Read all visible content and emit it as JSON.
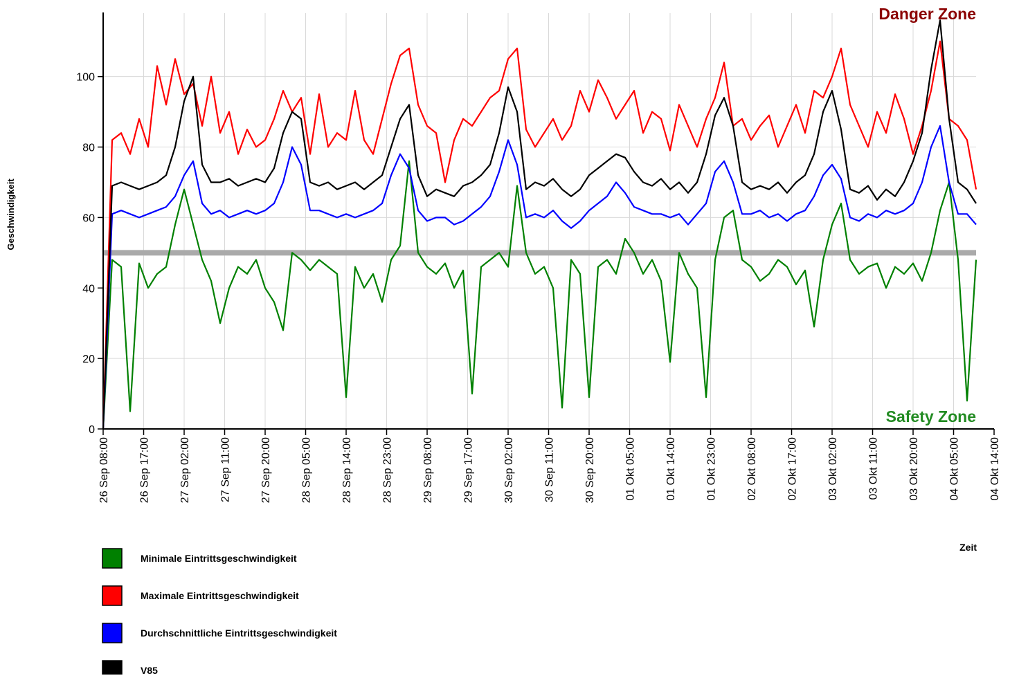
{
  "chart_data": {
    "type": "line",
    "y_label": "Geschwindigkeit",
    "x_label": "Zeit",
    "x": [
      "26 Sep 08:00",
      "26 Sep 10:00",
      "26 Sep 12:00",
      "26 Sep 14:00",
      "26 Sep 16:00",
      "26 Sep 18:00",
      "26 Sep 20:00",
      "26 Sep 22:00",
      "27 Sep 00:00",
      "27 Sep 02:00",
      "27 Sep 04:00",
      "27 Sep 06:00",
      "27 Sep 08:00",
      "27 Sep 10:00",
      "27 Sep 12:00",
      "27 Sep 14:00",
      "27 Sep 16:00",
      "27 Sep 18:00",
      "27 Sep 20:00",
      "27 Sep 22:00",
      "28 Sep 00:00",
      "28 Sep 02:00",
      "28 Sep 04:00",
      "28 Sep 06:00",
      "28 Sep 08:00",
      "28 Sep 10:00",
      "28 Sep 12:00",
      "28 Sep 14:00",
      "28 Sep 16:00",
      "28 Sep 18:00",
      "28 Sep 20:00",
      "28 Sep 22:00",
      "29 Sep 00:00",
      "29 Sep 02:00",
      "29 Sep 04:00",
      "29 Sep 06:00",
      "29 Sep 08:00",
      "29 Sep 10:00",
      "29 Sep 12:00",
      "29 Sep 14:00",
      "29 Sep 16:00",
      "29 Sep 18:00",
      "29 Sep 20:00",
      "29 Sep 22:00",
      "30 Sep 00:00",
      "30 Sep 02:00",
      "30 Sep 04:00",
      "30 Sep 06:00",
      "30 Sep 08:00",
      "30 Sep 10:00",
      "30 Sep 12:00",
      "30 Sep 14:00",
      "30 Sep 16:00",
      "30 Sep 18:00",
      "30 Sep 20:00",
      "30 Sep 22:00",
      "01 Okt 00:00",
      "01 Okt 02:00",
      "01 Okt 04:00",
      "01 Okt 06:00",
      "01 Okt 08:00",
      "01 Okt 10:00",
      "01 Okt 12:00",
      "01 Okt 14:00",
      "01 Okt 16:00",
      "01 Okt 18:00",
      "01 Okt 20:00",
      "01 Okt 22:00",
      "02 Okt 00:00",
      "02 Okt 02:00",
      "02 Okt 04:00",
      "02 Okt 06:00",
      "02 Okt 08:00",
      "02 Okt 10:00",
      "02 Okt 12:00",
      "02 Okt 14:00",
      "02 Okt 16:00",
      "02 Okt 18:00",
      "02 Okt 20:00",
      "02 Okt 22:00",
      "03 Okt 00:00",
      "03 Okt 02:00",
      "03 Okt 04:00",
      "03 Okt 06:00",
      "03 Okt 08:00",
      "03 Okt 10:00",
      "03 Okt 12:00",
      "03 Okt 14:00",
      "03 Okt 16:00",
      "03 Okt 18:00",
      "03 Okt 20:00",
      "03 Okt 22:00",
      "04 Okt 00:00",
      "04 Okt 02:00",
      "04 Okt 04:00",
      "04 Okt 06:00",
      "04 Okt 08:00",
      "04 Okt 10:00"
    ],
    "series": [
      {
        "name": "Minimale Eintrittsgeschwindigkeit",
        "color": "#008000",
        "values": [
          0,
          48,
          46,
          5,
          47,
          40,
          44,
          46,
          58,
          68,
          58,
          48,
          42,
          30,
          40,
          46,
          44,
          48,
          40,
          36,
          28,
          50,
          48,
          45,
          48,
          46,
          44,
          9,
          46,
          40,
          44,
          36,
          48,
          52,
          76,
          50,
          46,
          44,
          47,
          40,
          45,
          10,
          46,
          48,
          50,
          46,
          69,
          50,
          44,
          46,
          40,
          6,
          48,
          44,
          9,
          46,
          48,
          44,
          54,
          50,
          44,
          48,
          42,
          19,
          50,
          44,
          40,
          9,
          48,
          60,
          62,
          48,
          46,
          42,
          44,
          48,
          46,
          41,
          45,
          29,
          48,
          58,
          64,
          48,
          44,
          46,
          47,
          40,
          46,
          44,
          47,
          42,
          50,
          62,
          70,
          48,
          8,
          48
        ]
      },
      {
        "name": "Maximale Eintrittsgeschwindigkeit",
        "color": "#ff0000",
        "values": [
          0,
          82,
          84,
          78,
          88,
          80,
          103,
          92,
          105,
          95,
          98,
          86,
          100,
          84,
          90,
          78,
          85,
          80,
          82,
          88,
          96,
          90,
          94,
          78,
          95,
          80,
          84,
          82,
          96,
          82,
          78,
          88,
          98,
          106,
          108,
          92,
          86,
          84,
          70,
          82,
          88,
          86,
          90,
          94,
          96,
          105,
          108,
          85,
          80,
          84,
          88,
          82,
          86,
          96,
          90,
          99,
          94,
          88,
          92,
          96,
          84,
          90,
          88,
          79,
          92,
          86,
          80,
          88,
          94,
          104,
          86,
          88,
          82,
          86,
          89,
          80,
          86,
          92,
          84,
          96,
          94,
          100,
          108,
          92,
          86,
          80,
          90,
          84,
          95,
          88,
          78,
          86,
          96,
          110,
          88,
          86,
          82,
          68
        ]
      },
      {
        "name": "Durchschnittliche Eintrittsgeschwindigkeit",
        "color": "#0000ff",
        "values": [
          0,
          61,
          62,
          61,
          60,
          61,
          62,
          63,
          66,
          72,
          76,
          64,
          61,
          62,
          60,
          61,
          62,
          61,
          62,
          64,
          70,
          80,
          75,
          62,
          62,
          61,
          60,
          61,
          60,
          61,
          62,
          64,
          72,
          78,
          74,
          62,
          59,
          60,
          60,
          58,
          59,
          61,
          63,
          66,
          73,
          82,
          75,
          60,
          61,
          60,
          62,
          59,
          57,
          59,
          62,
          64,
          66,
          70,
          67,
          63,
          62,
          61,
          61,
          60,
          61,
          58,
          61,
          64,
          73,
          76,
          70,
          61,
          61,
          62,
          60,
          61,
          59,
          61,
          62,
          66,
          72,
          75,
          71,
          60,
          59,
          61,
          60,
          62,
          61,
          62,
          64,
          70,
          80,
          86,
          70,
          61,
          61,
          58
        ]
      },
      {
        "name": "V85",
        "color": "#000000",
        "values": [
          0,
          69,
          70,
          69,
          68,
          69,
          70,
          72,
          80,
          93,
          100,
          75,
          70,
          70,
          71,
          69,
          70,
          71,
          70,
          74,
          84,
          90,
          88,
          70,
          69,
          70,
          68,
          69,
          70,
          68,
          70,
          72,
          80,
          88,
          92,
          72,
          66,
          68,
          67,
          66,
          69,
          70,
          72,
          75,
          84,
          97,
          90,
          68,
          70,
          69,
          71,
          68,
          66,
          68,
          72,
          74,
          76,
          78,
          77,
          73,
          70,
          69,
          71,
          68,
          70,
          67,
          70,
          78,
          89,
          94,
          86,
          70,
          68,
          69,
          68,
          70,
          67,
          70,
          72,
          78,
          90,
          96,
          85,
          68,
          67,
          69,
          65,
          68,
          66,
          70,
          76,
          84,
          102,
          116,
          88,
          70,
          68,
          64
        ]
      }
    ],
    "xlim": [
      "26 Sep 08:00",
      "04 Okt 14:00"
    ],
    "xticks": [
      "26 Sep 08:00",
      "26 Sep 17:00",
      "27 Sep 02:00",
      "27 Sep 11:00",
      "27 Sep 20:00",
      "28 Sep 05:00",
      "28 Sep 14:00",
      "28 Sep 23:00",
      "29 Sep 08:00",
      "29 Sep 17:00",
      "30 Sep 02:00",
      "30 Sep 11:00",
      "30 Sep 20:00",
      "01 Okt 05:00",
      "01 Okt 14:00",
      "01 Okt 23:00",
      "02 Okt 08:00",
      "02 Okt 17:00",
      "03 Okt 02:00",
      "03 Okt 11:00",
      "03 Okt 20:00",
      "04 Okt 05:00",
      "04 Okt 14:00"
    ],
    "ylim": [
      0,
      118
    ],
    "yticks": [
      0,
      20,
      40,
      60,
      80,
      100
    ],
    "grid": true,
    "threshold": {
      "value": 50,
      "color": "#aaaaaa"
    },
    "annotations": [
      {
        "text": "Danger Zone",
        "color": "#8b0000",
        "position": "top"
      },
      {
        "text": "Safety Zone",
        "color": "#228b22",
        "position": "bottom"
      }
    ],
    "legend": "bottom-left"
  }
}
